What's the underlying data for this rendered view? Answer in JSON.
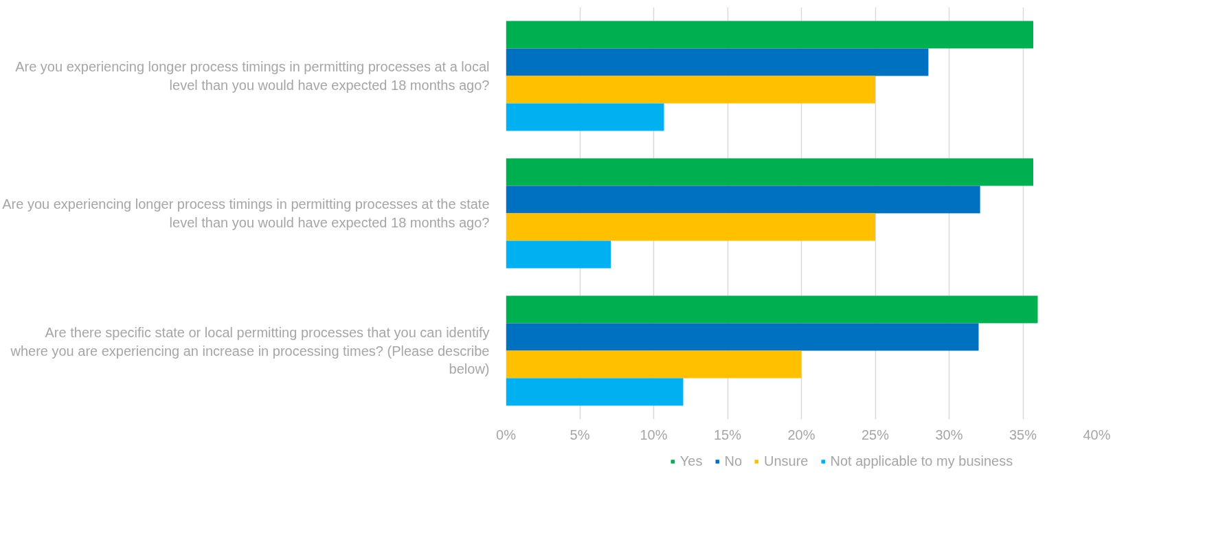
{
  "chart_data": {
    "type": "bar",
    "orientation": "horizontal",
    "categories": [
      "Are you experiencing longer process timings in permitting processes at a local level than you would have expected 18 months ago?",
      "Are you experiencing longer process timings in permitting processes at the state level than you would have expected 18 months ago?",
      "Are there specific state or local permitting processes that you can identify where you are experiencing an increase in processing times? (Please describe below)"
    ],
    "series": [
      {
        "name": "Yes",
        "color": "#00b050",
        "values": [
          35.7,
          35.7,
          36
        ]
      },
      {
        "name": "No",
        "color": "#0070c0",
        "values": [
          28.6,
          32.1,
          32
        ]
      },
      {
        "name": "Unsure",
        "color": "#ffc000",
        "values": [
          25,
          25,
          20
        ]
      },
      {
        "name": "Not applicable to my business",
        "color": "#00b0f0",
        "values": [
          10.7,
          7.1,
          12
        ]
      }
    ],
    "xlim": [
      0,
      40
    ],
    "xticks": [
      {
        "value": 0,
        "label": "0%"
      },
      {
        "value": 5,
        "label": "5%"
      },
      {
        "value": 10,
        "label": "10%"
      },
      {
        "value": 15,
        "label": "15%"
      },
      {
        "value": 20,
        "label": "20%"
      },
      {
        "value": 25,
        "label": "25%"
      },
      {
        "value": 30,
        "label": "30%"
      },
      {
        "value": 35,
        "label": "35%"
      },
      {
        "value": 40,
        "label": "40%"
      }
    ],
    "grid": "x",
    "legend": "bottom"
  }
}
